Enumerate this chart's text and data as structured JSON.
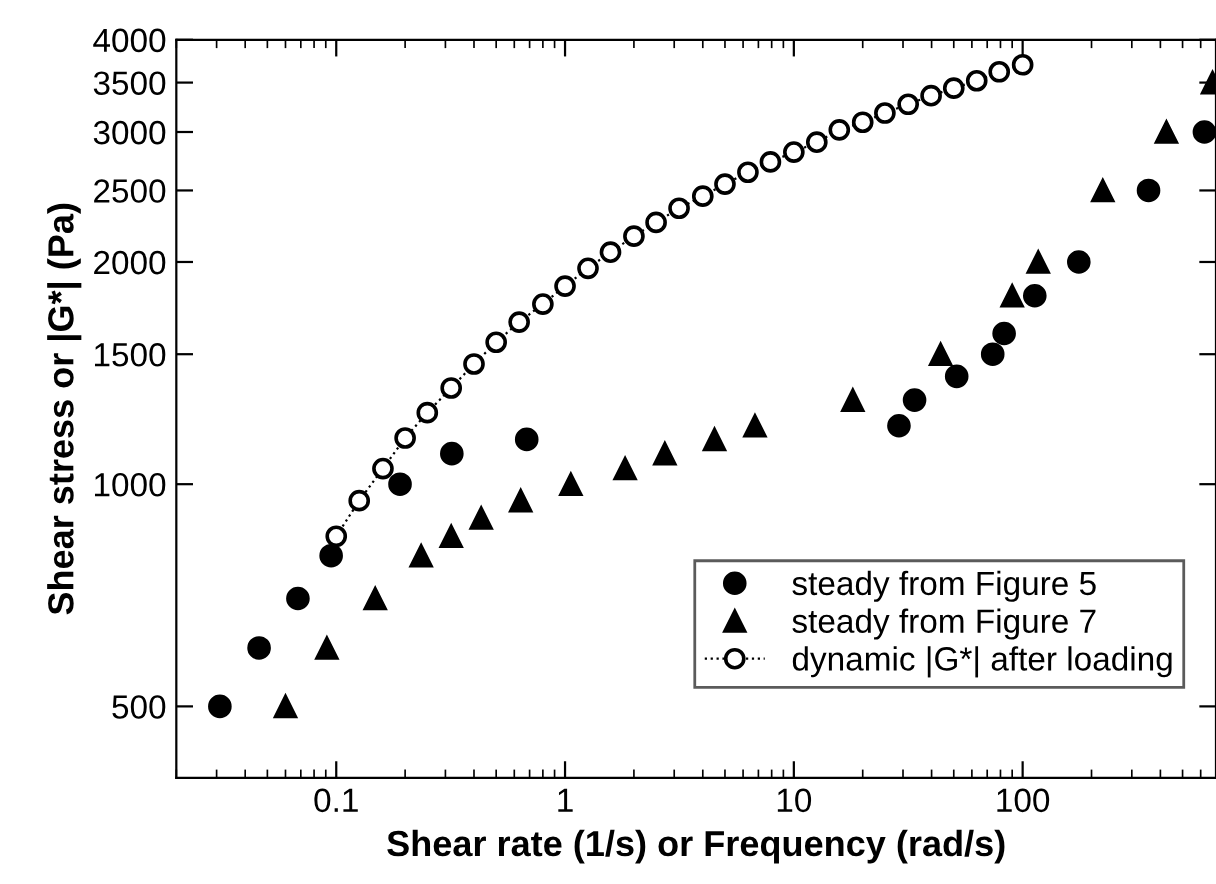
{
  "chart_data": {
    "type": "scatter",
    "xlabel": "Shear rate (1/s) or Frequency (rad/s)",
    "ylabel": "Shear stress or |G*| (Pa)",
    "log": "xy",
    "xlim": [
      0.02,
      700
    ],
    "xticks": [
      0.1,
      1,
      10,
      100
    ],
    "ylim": [
      400,
      4000
    ],
    "yticks": [
      500,
      1000,
      1500,
      2000,
      2500,
      3000,
      3500,
      4000
    ],
    "grid": false,
    "legend": "bottom right",
    "series": [
      {
        "name": "steady from Figure 5",
        "color": "#000000",
        "marker": "circle",
        "x": [
          0.031,
          0.046,
          0.068,
          0.095,
          0.19,
          0.32,
          0.68,
          28.8,
          33.7,
          51.5,
          74,
          83,
          113,
          176,
          355,
          623
        ],
        "values": [
          500,
          600,
          700,
          800,
          1000,
          1100,
          1150,
          1200,
          1300,
          1400,
          1500,
          1600,
          1800,
          2000,
          2500,
          3000
        ]
      },
      {
        "name": "steady from Figure 7",
        "color": "#000000",
        "marker": "triangle",
        "x": [
          0.06,
          0.091,
          0.148,
          0.235,
          0.318,
          0.43,
          0.64,
          1.06,
          1.83,
          2.73,
          4.5,
          6.76,
          18.1,
          43.8,
          90,
          117,
          224,
          425,
          676
        ],
        "values": [
          500,
          600,
          700,
          800,
          850,
          900,
          950,
          1000,
          1050,
          1100,
          1150,
          1200,
          1300,
          1500,
          1800,
          2000,
          2500,
          3000,
          3500
        ]
      },
      {
        "name": "dynamic |G*| after loading",
        "type": "line",
        "color": "#000000",
        "marker": "circle",
        "line_style": "dotted",
        "x": [
          0.1,
          0.126,
          0.16,
          0.2,
          0.25,
          0.318,
          0.4,
          0.5,
          0.63,
          0.8,
          1,
          1.26,
          1.58,
          2.0,
          2.5,
          3.15,
          4.0,
          5.0,
          6.3,
          7.9,
          10,
          12.6,
          15.8,
          20,
          25,
          31.6,
          39.8,
          50,
          63,
          79,
          100
        ],
        "values": [
          850,
          950,
          1050,
          1155,
          1250,
          1350,
          1455,
          1557,
          1658,
          1754,
          1855,
          1961,
          2062,
          2168,
          2263,
          2365,
          2456,
          2550,
          2646,
          2733,
          2818,
          2906,
          3020,
          3093,
          3183,
          3271,
          3360,
          3440,
          3520,
          3620,
          3700
        ]
      }
    ]
  }
}
